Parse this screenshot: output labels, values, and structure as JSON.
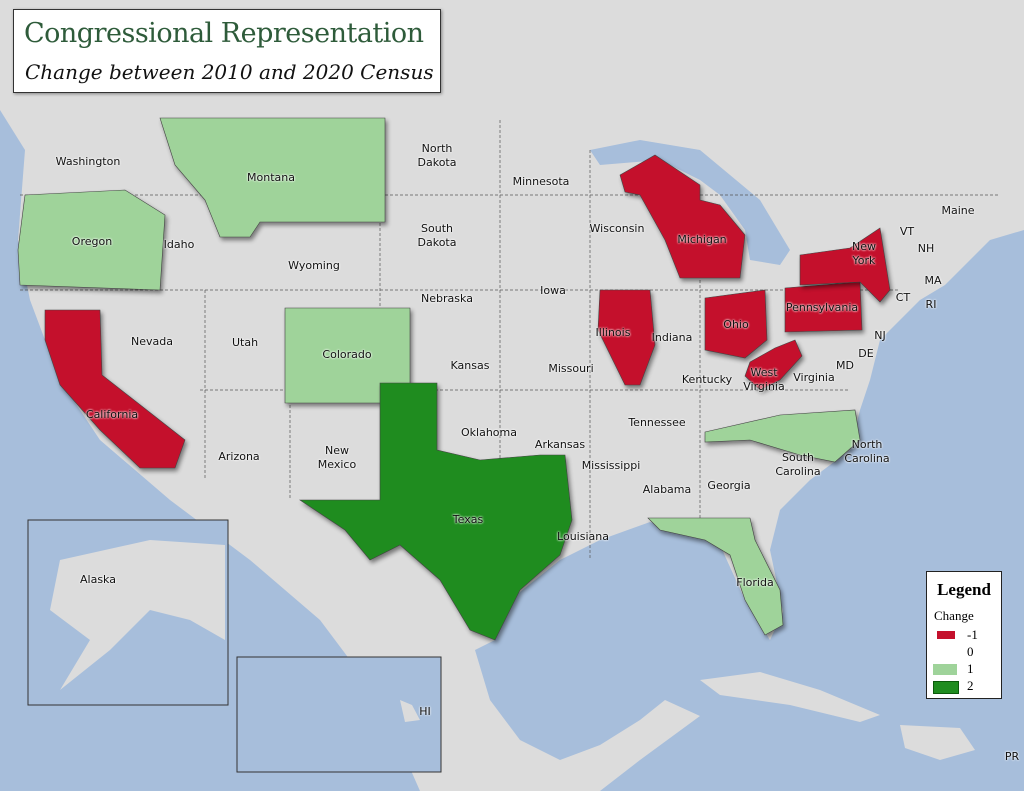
{
  "title": "Congressional Representation",
  "subtitle": "Change between 2010 and 2020 Census",
  "legend": {
    "heading": "Legend",
    "caption": "Change",
    "items": [
      {
        "label": "-1",
        "color": "#c4102c"
      },
      {
        "label": "0",
        "color": "#ffffff"
      },
      {
        "label": "1",
        "color": "#9fd39a"
      },
      {
        "label": "2",
        "color": "#1f8c1f"
      }
    ]
  },
  "colors": {
    "ocean": "#a7bedb",
    "land": "#dcdcdc"
  },
  "state_changes": {
    "Oregon": 1,
    "Montana": 1,
    "Colorado": 1,
    "North Carolina": 1,
    "Florida": 1,
    "Texas": 2,
    "California": -1,
    "Michigan": -1,
    "Illinois": -1,
    "Ohio": -1,
    "Pennsylvania": -1,
    "New York": -1,
    "West Virginia": -1
  },
  "labels": [
    "Washington",
    "Montana",
    "North\nDakota",
    "Minnesota",
    "Oregon",
    "Idaho",
    "Wyoming",
    "South\nDakota",
    "Wisconsin",
    "Michigan",
    "Iowa",
    "Nebraska",
    "Nevada",
    "Utah",
    "Colorado",
    "Kansas",
    "Missouri",
    "Illinois",
    "Indiana",
    "Ohio",
    "Pennsylvania",
    "New\nYork",
    "California",
    "Arizona",
    "New\nMexico",
    "Oklahoma",
    "Arkansas",
    "Tennessee",
    "Kentucky",
    "West\nVirginia",
    "Virginia",
    "MD",
    "DE",
    "NJ",
    "CT",
    "RI",
    "MA",
    "NH",
    "VT",
    "Maine",
    "North\nCarolina",
    "South\nCarolina",
    "Mississippi",
    "Alabama",
    "Georgia",
    "Texas",
    "Louisiana",
    "Florida",
    "Alaska",
    "HI",
    "PR"
  ]
}
